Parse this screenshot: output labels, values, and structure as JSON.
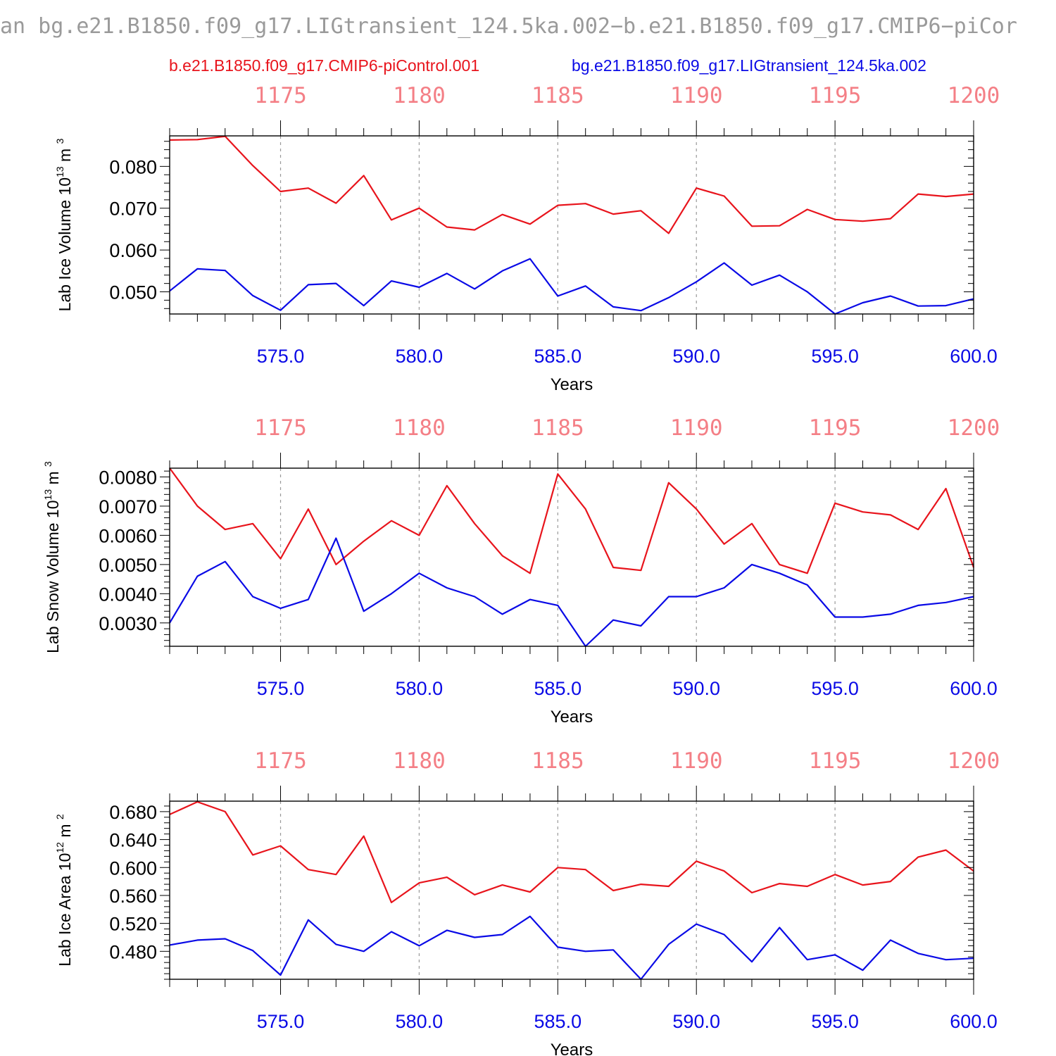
{
  "header": {
    "title": "an bg.e21.B1850.f09_g17.LIGtransient_124.5ka.002−b.e21.B1850.f09_g17.CMIP6−piCor"
  },
  "legend": {
    "series_a": "b.e21.B1850.f09_g17.CMIP6-piControl.001",
    "series_b": "bg.e21.B1850.f09_g17.LIGtransient_124.5ka.002"
  },
  "colors": {
    "series_a": "#e8141c",
    "series_b": "#0a0ae6",
    "top_axis_text": "#f47f86",
    "bottom_axis_text": "#0a0ae6",
    "grid": "#999999"
  },
  "chart_data": [
    {
      "type": "line",
      "ylabel": "Lab Ice Volume",
      "yunit_base": "10",
      "yunit_exp": "13",
      "yunit_suffix": "m",
      "yunit_suffix_exp": "3",
      "xlabel": "Years",
      "xlim": [
        571,
        600
      ],
      "ylim": [
        0.0447,
        0.0873
      ],
      "x_ticks": [
        "575.0",
        "580.0",
        "585.0",
        "590.0",
        "595.0",
        "600.0"
      ],
      "x_tick_values": [
        575,
        580,
        585,
        590,
        595,
        600
      ],
      "top_ticks": [
        "1175",
        "1180",
        "1185",
        "1190",
        "1195",
        "1200"
      ],
      "top_tick_values": [
        575,
        580,
        585,
        590,
        595,
        600
      ],
      "y_ticks": [
        "0.050",
        "0.060",
        "0.070",
        "0.080"
      ],
      "y_tick_values": [
        0.05,
        0.06,
        0.07,
        0.08
      ],
      "y_minor_step": 0.002,
      "grid": "vertical dashed at major x ticks",
      "x": [
        571,
        572,
        573,
        574,
        575,
        576,
        577,
        578,
        579,
        580,
        581,
        582,
        583,
        584,
        585,
        586,
        587,
        588,
        589,
        590,
        591,
        592,
        593,
        594,
        595,
        596,
        597,
        598,
        599,
        600
      ],
      "series": [
        {
          "values": [
            0.0863,
            0.0864,
            0.0872,
            0.0802,
            0.074,
            0.0748,
            0.0712,
            0.0778,
            0.0672,
            0.07,
            0.0655,
            0.0648,
            0.0685,
            0.0662,
            0.0707,
            0.0711,
            0.0686,
            0.0694,
            0.064,
            0.0748,
            0.0729,
            0.0657,
            0.0658,
            0.0697,
            0.0673,
            0.0669,
            0.0675,
            0.0734,
            0.0728,
            0.0734
          ]
        },
        {
          "values": [
            0.0502,
            0.0555,
            0.0551,
            0.0491,
            0.0456,
            0.0517,
            0.052,
            0.0467,
            0.0526,
            0.0511,
            0.0544,
            0.0507,
            0.055,
            0.0579,
            0.049,
            0.0514,
            0.0464,
            0.0455,
            0.0486,
            0.0524,
            0.0569,
            0.0516,
            0.054,
            0.05,
            0.0447,
            0.0474,
            0.049,
            0.0466,
            0.0467,
            0.0483
          ]
        }
      ]
    },
    {
      "type": "line",
      "ylabel": "Lab Snow Volume",
      "yunit_base": "10",
      "yunit_exp": "13",
      "yunit_suffix": "m",
      "yunit_suffix_exp": "3",
      "xlabel": "Years",
      "xlim": [
        571,
        600
      ],
      "ylim": [
        0.0022,
        0.0083
      ],
      "x_ticks": [
        "575.0",
        "580.0",
        "585.0",
        "590.0",
        "595.0",
        "600.0"
      ],
      "x_tick_values": [
        575,
        580,
        585,
        590,
        595,
        600
      ],
      "top_ticks": [
        "1175",
        "1180",
        "1185",
        "1190",
        "1195",
        "1200"
      ],
      "top_tick_values": [
        575,
        580,
        585,
        590,
        595,
        600
      ],
      "y_ticks": [
        "0.0030",
        "0.0040",
        "0.0050",
        "0.0060",
        "0.0070",
        "0.0080"
      ],
      "y_tick_values": [
        0.003,
        0.004,
        0.005,
        0.006,
        0.007,
        0.008
      ],
      "y_minor_step": 0.0002,
      "grid": "vertical dashed at major x ticks",
      "x": [
        571,
        572,
        573,
        574,
        575,
        576,
        577,
        578,
        579,
        580,
        581,
        582,
        583,
        584,
        585,
        586,
        587,
        588,
        589,
        590,
        591,
        592,
        593,
        594,
        595,
        596,
        597,
        598,
        599,
        600
      ],
      "series": [
        {
          "values": [
            0.0083,
            0.007,
            0.0062,
            0.0064,
            0.0052,
            0.0069,
            0.005,
            0.0058,
            0.0065,
            0.006,
            0.0077,
            0.0064,
            0.0053,
            0.0047,
            0.0081,
            0.0069,
            0.0049,
            0.0048,
            0.0078,
            0.0069,
            0.0057,
            0.0064,
            0.005,
            0.0047,
            0.0071,
            0.0068,
            0.0067,
            0.0062,
            0.0076,
            0.0049
          ]
        },
        {
          "values": [
            0.003,
            0.0046,
            0.0051,
            0.0039,
            0.0035,
            0.0038,
            0.0059,
            0.0034,
            0.004,
            0.0047,
            0.0042,
            0.0039,
            0.0033,
            0.0038,
            0.0036,
            0.0022,
            0.0031,
            0.0029,
            0.0039,
            0.0039,
            0.0042,
            0.005,
            0.0047,
            0.0043,
            0.0032,
            0.0032,
            0.0033,
            0.0036,
            0.0037,
            0.0039
          ]
        }
      ]
    },
    {
      "type": "line",
      "ylabel": "Lab Ice Area",
      "yunit_base": "10",
      "yunit_exp": "12",
      "yunit_suffix": "m",
      "yunit_suffix_exp": "2",
      "xlabel": "Years",
      "xlim": [
        571,
        600
      ],
      "ylim": [
        0.44,
        0.695
      ],
      "x_ticks": [
        "575.0",
        "580.0",
        "585.0",
        "590.0",
        "595.0",
        "600.0"
      ],
      "x_tick_values": [
        575,
        580,
        585,
        590,
        595,
        600
      ],
      "top_ticks": [
        "1175",
        "1180",
        "1185",
        "1190",
        "1195",
        "1200"
      ],
      "top_tick_values": [
        575,
        580,
        585,
        590,
        595,
        600
      ],
      "y_ticks": [
        "0.480",
        "0.520",
        "0.560",
        "0.600",
        "0.640",
        "0.680"
      ],
      "y_tick_values": [
        0.48,
        0.52,
        0.56,
        0.6,
        0.64,
        0.68
      ],
      "y_minor_step": 0.008,
      "grid": "vertical dashed at major x ticks",
      "x": [
        571,
        572,
        573,
        574,
        575,
        576,
        577,
        578,
        579,
        580,
        581,
        582,
        583,
        584,
        585,
        586,
        587,
        588,
        589,
        590,
        591,
        592,
        593,
        594,
        595,
        596,
        597,
        598,
        599,
        600
      ],
      "series": [
        {
          "values": [
            0.676,
            0.694,
            0.68,
            0.618,
            0.631,
            0.597,
            0.59,
            0.645,
            0.55,
            0.578,
            0.586,
            0.561,
            0.575,
            0.565,
            0.6,
            0.597,
            0.567,
            0.576,
            0.573,
            0.609,
            0.595,
            0.564,
            0.577,
            0.573,
            0.59,
            0.575,
            0.58,
            0.615,
            0.625,
            0.595
          ]
        },
        {
          "values": [
            0.489,
            0.496,
            0.498,
            0.481,
            0.446,
            0.525,
            0.49,
            0.48,
            0.508,
            0.488,
            0.51,
            0.5,
            0.504,
            0.53,
            0.486,
            0.48,
            0.482,
            0.44,
            0.49,
            0.519,
            0.504,
            0.465,
            0.514,
            0.468,
            0.475,
            0.453,
            0.496,
            0.477,
            0.468,
            0.47
          ]
        }
      ]
    }
  ]
}
